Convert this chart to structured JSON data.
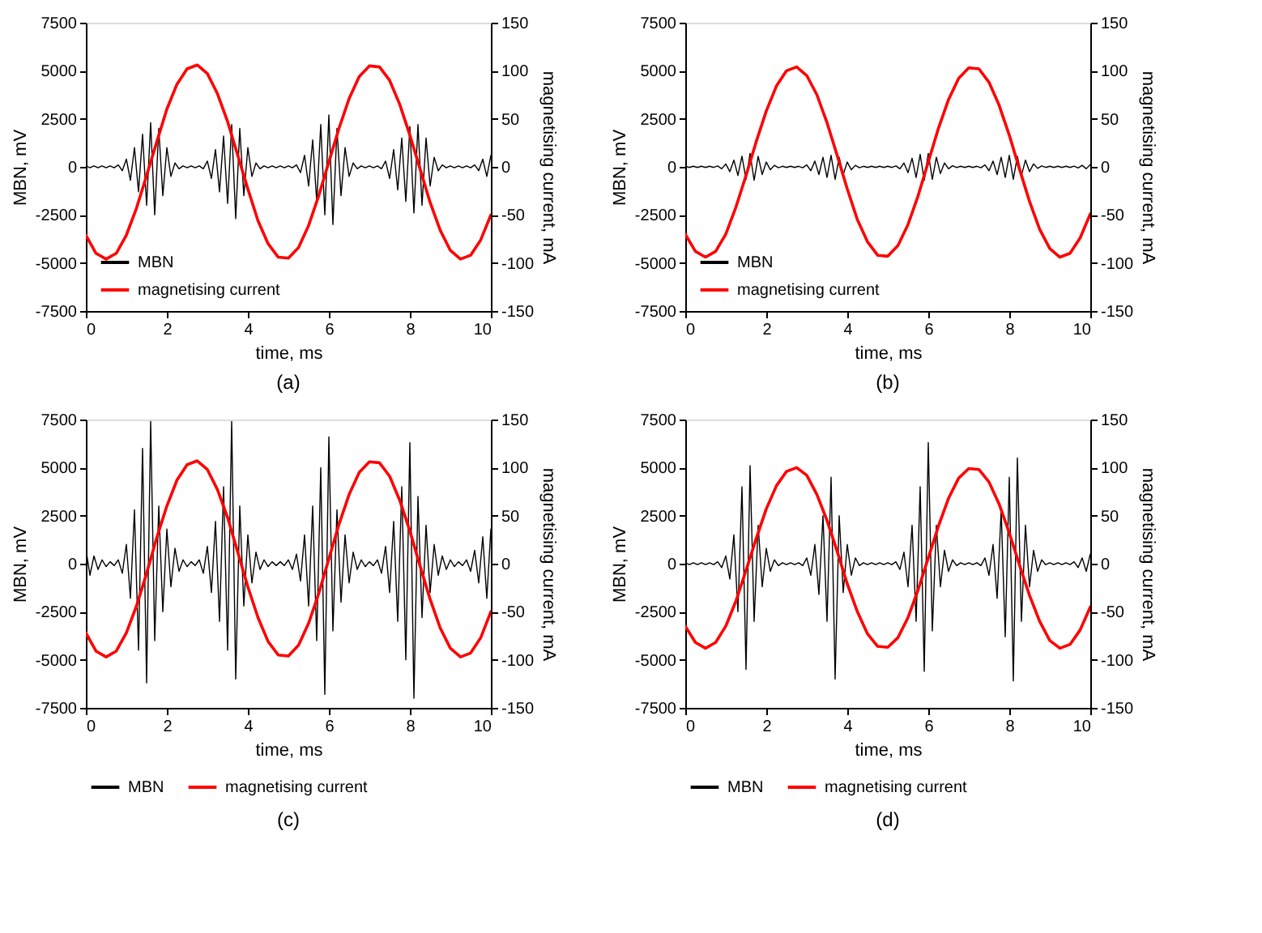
{
  "chart_data": [
    {
      "type": "line",
      "annotations": [
        "(a)"
      ],
      "xlabel": "time, ms",
      "ylabel": "MBN, mV",
      "y2label": "magnetising current, mA",
      "xlim": [
        0,
        10
      ],
      "xticks": [
        0,
        2,
        4,
        6,
        8,
        10
      ],
      "ylim": [
        -7500,
        7500
      ],
      "yticks": [
        -7500,
        -5000,
        -2500,
        0,
        2500,
        5000,
        7500
      ],
      "y2lim": [
        -150,
        150
      ],
      "y2ticks": [
        -150,
        -100,
        -50,
        0,
        50,
        100,
        150
      ],
      "legend": "bottom left",
      "x": [
        0,
        0.1,
        0.2,
        0.3,
        0.4,
        0.5,
        0.6,
        0.7,
        0.8,
        0.9,
        1,
        1.1,
        1.2,
        1.3,
        1.4,
        1.5,
        1.6,
        1.7,
        1.8,
        1.9,
        2,
        2.1,
        2.2,
        2.3,
        2.4,
        2.5,
        2.6,
        2.7,
        2.8,
        2.9,
        3,
        3.1,
        3.2,
        3.3,
        3.4,
        3.5,
        3.6,
        3.7,
        3.8,
        3.9,
        4,
        4.1,
        4.2,
        4.3,
        4.4,
        4.5,
        4.6,
        4.7,
        4.8,
        4.9,
        5,
        5.1,
        5.2,
        5.3,
        5.4,
        5.5,
        5.6,
        5.7,
        5.8,
        5.9,
        6,
        6.1,
        6.2,
        6.3,
        6.4,
        6.5,
        6.6,
        6.7,
        6.8,
        6.9,
        7,
        7.1,
        7.2,
        7.3,
        7.4,
        7.5,
        7.6,
        7.7,
        7.8,
        7.9,
        8,
        8.1,
        8.2,
        8.3,
        8.4,
        8.5,
        8.6,
        8.7,
        8.8,
        8.9,
        9,
        9.1,
        9.2,
        9.3,
        9.4,
        9.5,
        9.6,
        9.7,
        9.8,
        9.9,
        10
      ],
      "series": [
        {
          "name": "MBN",
          "color": "#000000",
          "values": [
            50,
            -50,
            50,
            -50,
            50,
            -50,
            50,
            -50,
            100,
            -200,
            400,
            -700,
            1000,
            -1300,
            1700,
            -2000,
            2300,
            -2500,
            2000,
            -1500,
            1000,
            -500,
            200,
            -100,
            50,
            -50,
            50,
            -50,
            50,
            -100,
            300,
            -600,
            900,
            -1300,
            1600,
            -1900,
            2200,
            -2700,
            2000,
            -1500,
            1000,
            -500,
            200,
            -100,
            50,
            -50,
            50,
            -50,
            50,
            -50,
            50,
            -50,
            100,
            -300,
            600,
            -1000,
            1400,
            -1800,
            2200,
            -2500,
            2700,
            -3000,
            2000,
            -1500,
            1000,
            -500,
            200,
            -100,
            50,
            -50,
            50,
            -50,
            50,
            -100,
            300,
            -600,
            900,
            -1200,
            1500,
            -1800,
            2100,
            -2400,
            2200,
            -2000,
            1500,
            -1000,
            500,
            -200,
            100,
            -50,
            50,
            -50,
            50,
            -50,
            50,
            -50,
            100,
            -200,
            400,
            -500,
            600
          ]
        },
        {
          "name": "magnetising current",
          "color": "#ff0000",
          "axis": "y2",
          "x": [
            0,
            0.25,
            0.5,
            0.75,
            1,
            1.25,
            1.5,
            1.75,
            2,
            2.25,
            2.5,
            2.75,
            3,
            3.25,
            3.5,
            3.75,
            4,
            4.25,
            4.5,
            4.75,
            5,
            5.25,
            5.5,
            5.75,
            6,
            6.25,
            6.5,
            6.75,
            7,
            7.25,
            7.5,
            7.75,
            8,
            8.25,
            8.5,
            8.75,
            9,
            9.25,
            9.5,
            9.75,
            10
          ],
          "values": [
            -71,
            -90,
            -96,
            -90,
            -71,
            -43,
            -9,
            26,
            60,
            86,
            102,
            106,
            97,
            76,
            47,
            12,
            -23,
            -56,
            -80,
            -94,
            -95,
            -84,
            -61,
            -30,
            5,
            40,
            71,
            94,
            105,
            104,
            90,
            65,
            33,
            -2,
            -37,
            -66,
            -87,
            -96,
            -92,
            -76,
            -50
          ]
        }
      ]
    },
    {
      "type": "line",
      "annotations": [
        "(b)"
      ],
      "xlabel": "time, ms",
      "ylabel": "MBN, mV",
      "y2label": "magnetising current, mA",
      "xlim": [
        0,
        10
      ],
      "xticks": [
        0,
        2,
        4,
        6,
        8,
        10
      ],
      "ylim": [
        -7500,
        7500
      ],
      "yticks": [
        -7500,
        -5000,
        -2500,
        0,
        2500,
        5000,
        7500
      ],
      "y2lim": [
        -150,
        150
      ],
      "y2ticks": [
        -150,
        -100,
        -50,
        0,
        50,
        100,
        150
      ],
      "legend": "bottom left",
      "x": [
        0,
        0.1,
        0.2,
        0.3,
        0.4,
        0.5,
        0.6,
        0.7,
        0.8,
        0.9,
        1,
        1.1,
        1.2,
        1.3,
        1.4,
        1.5,
        1.6,
        1.7,
        1.8,
        1.9,
        2,
        2.1,
        2.2,
        2.3,
        2.4,
        2.5,
        2.6,
        2.7,
        2.8,
        2.9,
        3,
        3.1,
        3.2,
        3.3,
        3.4,
        3.5,
        3.6,
        3.7,
        3.8,
        3.9,
        4,
        4.1,
        4.2,
        4.3,
        4.4,
        4.5,
        4.6,
        4.7,
        4.8,
        4.9,
        5,
        5.1,
        5.2,
        5.3,
        5.4,
        5.5,
        5.6,
        5.7,
        5.8,
        5.9,
        6,
        6.1,
        6.2,
        6.3,
        6.4,
        6.5,
        6.6,
        6.7,
        6.8,
        6.9,
        7,
        7.1,
        7.2,
        7.3,
        7.4,
        7.5,
        7.6,
        7.7,
        7.8,
        7.9,
        8,
        8.1,
        8.2,
        8.3,
        8.4,
        8.5,
        8.6,
        8.7,
        8.8,
        8.9,
        9,
        9.1,
        9.2,
        9.3,
        9.4,
        9.5,
        9.6,
        9.7,
        9.8,
        9.9,
        10
      ],
      "series": [
        {
          "name": "MBN",
          "color": "#000000",
          "values": [
            30,
            -30,
            30,
            -30,
            30,
            -30,
            30,
            -30,
            50,
            -100,
            150,
            -250,
            350,
            -450,
            550,
            -650,
            700,
            -700,
            550,
            -400,
            250,
            -150,
            80,
            -50,
            30,
            -30,
            30,
            -30,
            30,
            -50,
            100,
            -200,
            300,
            -400,
            500,
            -550,
            600,
            -650,
            500,
            -400,
            250,
            -150,
            80,
            -50,
            30,
            -30,
            30,
            -30,
            30,
            -30,
            30,
            -30,
            50,
            -100,
            200,
            -300,
            450,
            -550,
            650,
            -700,
            700,
            -650,
            500,
            -350,
            200,
            -100,
            60,
            -40,
            30,
            -30,
            30,
            -30,
            30,
            -50,
            100,
            -200,
            300,
            -400,
            500,
            -550,
            600,
            -650,
            550,
            -450,
            350,
            -250,
            150,
            -80,
            50,
            -30,
            30,
            -30,
            30,
            -30,
            30,
            -30,
            40,
            -60,
            80,
            -100,
            120
          ]
        },
        {
          "name": "magnetising current",
          "color": "#ff0000",
          "axis": "y2",
          "x": [
            0,
            0.25,
            0.5,
            0.75,
            1,
            1.25,
            1.5,
            1.75,
            2,
            2.25,
            2.5,
            2.75,
            3,
            3.25,
            3.5,
            3.75,
            4,
            4.25,
            4.5,
            4.75,
            5,
            5.25,
            5.5,
            5.75,
            6,
            6.25,
            6.5,
            6.75,
            7,
            7.25,
            7.5,
            7.75,
            8,
            8.25,
            8.5,
            8.75,
            9,
            9.25,
            9.5,
            9.75,
            10
          ],
          "values": [
            -70,
            -88,
            -94,
            -88,
            -70,
            -42,
            -9,
            26,
            58,
            84,
            100,
            104,
            95,
            75,
            46,
            12,
            -23,
            -55,
            -78,
            -92,
            -93,
            -82,
            -60,
            -30,
            5,
            40,
            70,
            92,
            103,
            102,
            88,
            64,
            33,
            -2,
            -36,
            -65,
            -85,
            -94,
            -90,
            -74,
            -49
          ]
        }
      ]
    },
    {
      "type": "line",
      "annotations": [
        "(c)"
      ],
      "xlabel": "time, ms",
      "ylabel": "MBN, mV",
      "y2label": "magnetising current, mA",
      "xlim": [
        0,
        10
      ],
      "xticks": [
        0,
        2,
        4,
        6,
        8,
        10
      ],
      "ylim": [
        -7500,
        7500
      ],
      "yticks": [
        -7500,
        -5000,
        -2500,
        0,
        2500,
        5000,
        7500
      ],
      "y2lim": [
        -150,
        150
      ],
      "y2ticks": [
        -150,
        -100,
        -50,
        0,
        50,
        100,
        150
      ],
      "legend": "bottom",
      "x": [
        0,
        0.1,
        0.2,
        0.3,
        0.4,
        0.5,
        0.6,
        0.7,
        0.8,
        0.9,
        1,
        1.1,
        1.2,
        1.3,
        1.4,
        1.5,
        1.6,
        1.7,
        1.8,
        1.9,
        2,
        2.1,
        2.2,
        2.3,
        2.4,
        2.5,
        2.6,
        2.7,
        2.8,
        2.9,
        3,
        3.1,
        3.2,
        3.3,
        3.4,
        3.5,
        3.6,
        3.7,
        3.8,
        3.9,
        4,
        4.1,
        4.2,
        4.3,
        4.4,
        4.5,
        4.6,
        4.7,
        4.8,
        4.9,
        5,
        5.1,
        5.2,
        5.3,
        5.4,
        5.5,
        5.6,
        5.7,
        5.8,
        5.9,
        6,
        6.1,
        6.2,
        6.3,
        6.4,
        6.5,
        6.6,
        6.7,
        6.8,
        6.9,
        7,
        7.1,
        7.2,
        7.3,
        7.4,
        7.5,
        7.6,
        7.7,
        7.8,
        7.9,
        8,
        8.1,
        8.2,
        8.3,
        8.4,
        8.5,
        8.6,
        8.7,
        8.8,
        8.9,
        9,
        9.1,
        9.2,
        9.3,
        9.4,
        9.5,
        9.6,
        9.7,
        9.8,
        9.9,
        10
      ],
      "series": [
        {
          "name": "MBN",
          "color": "#000000",
          "values": [
            800,
            -600,
            400,
            -300,
            200,
            -150,
            100,
            -100,
            200,
            -500,
            1000,
            -1800,
            2800,
            -4500,
            6000,
            -6200,
            7400,
            -4000,
            3000,
            -2500,
            1800,
            -1200,
            800,
            -400,
            200,
            -150,
            100,
            -100,
            200,
            -500,
            900,
            -1500,
            2200,
            -3000,
            4000,
            -4500,
            7400,
            -6000,
            3000,
            -2200,
            1500,
            -1000,
            600,
            -300,
            200,
            -150,
            100,
            -100,
            100,
            -100,
            200,
            -300,
            500,
            -900,
            1500,
            -2200,
            3000,
            -4000,
            5000,
            -6800,
            6600,
            -3500,
            2800,
            -2000,
            1500,
            -1000,
            600,
            -300,
            200,
            -150,
            100,
            -100,
            200,
            -500,
            900,
            -1500,
            2200,
            -3000,
            4000,
            -5000,
            6300,
            -7000,
            3500,
            -2800,
            2000,
            -1500,
            1000,
            -600,
            400,
            -300,
            200,
            -150,
            100,
            -100,
            200,
            -400,
            700,
            -1000,
            1400,
            -1800,
            1800
          ]
        },
        {
          "name": "magnetising current",
          "color": "#ff0000",
          "axis": "y2",
          "x": [
            0,
            0.25,
            0.5,
            0.75,
            1,
            1.25,
            1.5,
            1.75,
            2,
            2.25,
            2.5,
            2.75,
            3,
            3.25,
            3.5,
            3.75,
            4,
            4.25,
            4.5,
            4.75,
            5,
            5.25,
            5.5,
            5.75,
            6,
            6.25,
            6.5,
            6.75,
            7,
            7.25,
            7.5,
            7.75,
            8,
            8.25,
            8.5,
            8.75,
            9,
            9.25,
            9.5,
            9.75,
            10
          ],
          "values": [
            -72,
            -91,
            -97,
            -91,
            -72,
            -44,
            -10,
            27,
            60,
            87,
            103,
            107,
            98,
            77,
            48,
            12,
            -24,
            -56,
            -81,
            -95,
            -96,
            -85,
            -62,
            -31,
            5,
            41,
            72,
            95,
            106,
            105,
            91,
            66,
            34,
            -2,
            -37,
            -67,
            -88,
            -97,
            -93,
            -77,
            -50
          ]
        }
      ]
    },
    {
      "type": "line",
      "annotations": [
        "(d)"
      ],
      "xlabel": "time, ms",
      "ylabel": "MBN, mV",
      "y2label": "magnetising current, mA",
      "xlim": [
        0,
        10
      ],
      "xticks": [
        0,
        2,
        4,
        6,
        8,
        10
      ],
      "ylim": [
        -7500,
        7500
      ],
      "yticks": [
        -7500,
        -5000,
        -2500,
        0,
        2500,
        5000,
        7500
      ],
      "y2lim": [
        -150,
        150
      ],
      "y2ticks": [
        -150,
        -100,
        -50,
        0,
        50,
        100,
        150
      ],
      "legend": "bottom",
      "x": [
        0,
        0.1,
        0.2,
        0.3,
        0.4,
        0.5,
        0.6,
        0.7,
        0.8,
        0.9,
        1,
        1.1,
        1.2,
        1.3,
        1.4,
        1.5,
        1.6,
        1.7,
        1.8,
        1.9,
        2,
        2.1,
        2.2,
        2.3,
        2.4,
        2.5,
        2.6,
        2.7,
        2.8,
        2.9,
        3,
        3.1,
        3.2,
        3.3,
        3.4,
        3.5,
        3.6,
        3.7,
        3.8,
        3.9,
        4,
        4.1,
        4.2,
        4.3,
        4.4,
        4.5,
        4.6,
        4.7,
        4.8,
        4.9,
        5,
        5.1,
        5.2,
        5.3,
        5.4,
        5.5,
        5.6,
        5.7,
        5.8,
        5.9,
        6,
        6.1,
        6.2,
        6.3,
        6.4,
        6.5,
        6.6,
        6.7,
        6.8,
        6.9,
        7,
        7.1,
        7.2,
        7.3,
        7.4,
        7.5,
        7.6,
        7.7,
        7.8,
        7.9,
        8,
        8.1,
        8.2,
        8.3,
        8.4,
        8.5,
        8.6,
        8.7,
        8.8,
        8.9,
        9,
        9.1,
        9.2,
        9.3,
        9.4,
        9.5,
        9.6,
        9.7,
        9.8,
        9.9,
        10
      ],
      "series": [
        {
          "name": "MBN",
          "color": "#000000",
          "values": [
            50,
            -50,
            50,
            -50,
            50,
            -50,
            50,
            -50,
            100,
            -200,
            400,
            -800,
            1500,
            -2500,
            4000,
            -5500,
            5100,
            -3000,
            2000,
            -1200,
            800,
            -400,
            200,
            -100,
            50,
            -50,
            50,
            -50,
            50,
            -100,
            300,
            -600,
            1000,
            -1600,
            2500,
            -3000,
            4500,
            -6000,
            2500,
            -1500,
            1000,
            -600,
            300,
            -100,
            50,
            -50,
            50,
            -50,
            50,
            -50,
            50,
            -50,
            100,
            -300,
            600,
            -1200,
            2000,
            -3000,
            4000,
            -5600,
            6300,
            -3500,
            2000,
            -1200,
            700,
            -400,
            200,
            -100,
            50,
            -50,
            50,
            -50,
            50,
            -100,
            300,
            -600,
            1000,
            -1800,
            2800,
            -3800,
            4500,
            -6100,
            5500,
            -3000,
            2000,
            -1200,
            700,
            -400,
            200,
            -50,
            50,
            -50,
            50,
            -50,
            50,
            -50,
            100,
            -200,
            300,
            -400,
            500
          ]
        },
        {
          "name": "magnetising current",
          "color": "#ff0000",
          "axis": "y2",
          "x": [
            0,
            0.25,
            0.5,
            0.75,
            1,
            1.25,
            1.5,
            1.75,
            2,
            2.25,
            2.5,
            2.75,
            3,
            3.25,
            3.5,
            3.75,
            4,
            4.25,
            4.5,
            4.75,
            5,
            5.25,
            5.5,
            5.75,
            6,
            6.25,
            6.5,
            6.75,
            7,
            7.25,
            7.5,
            7.75,
            8,
            8.25,
            8.5,
            8.75,
            9,
            9.25,
            9.5,
            9.75,
            10
          ],
          "values": [
            -65,
            -82,
            -88,
            -82,
            -65,
            -39,
            -7,
            26,
            57,
            81,
            96,
            100,
            92,
            72,
            45,
            13,
            -21,
            -50,
            -73,
            -86,
            -87,
            -77,
            -56,
            -27,
            6,
            39,
            68,
            89,
            99,
            98,
            85,
            62,
            32,
            -1,
            -33,
            -60,
            -80,
            -88,
            -84,
            -69,
            -45
          ]
        }
      ]
    }
  ]
}
